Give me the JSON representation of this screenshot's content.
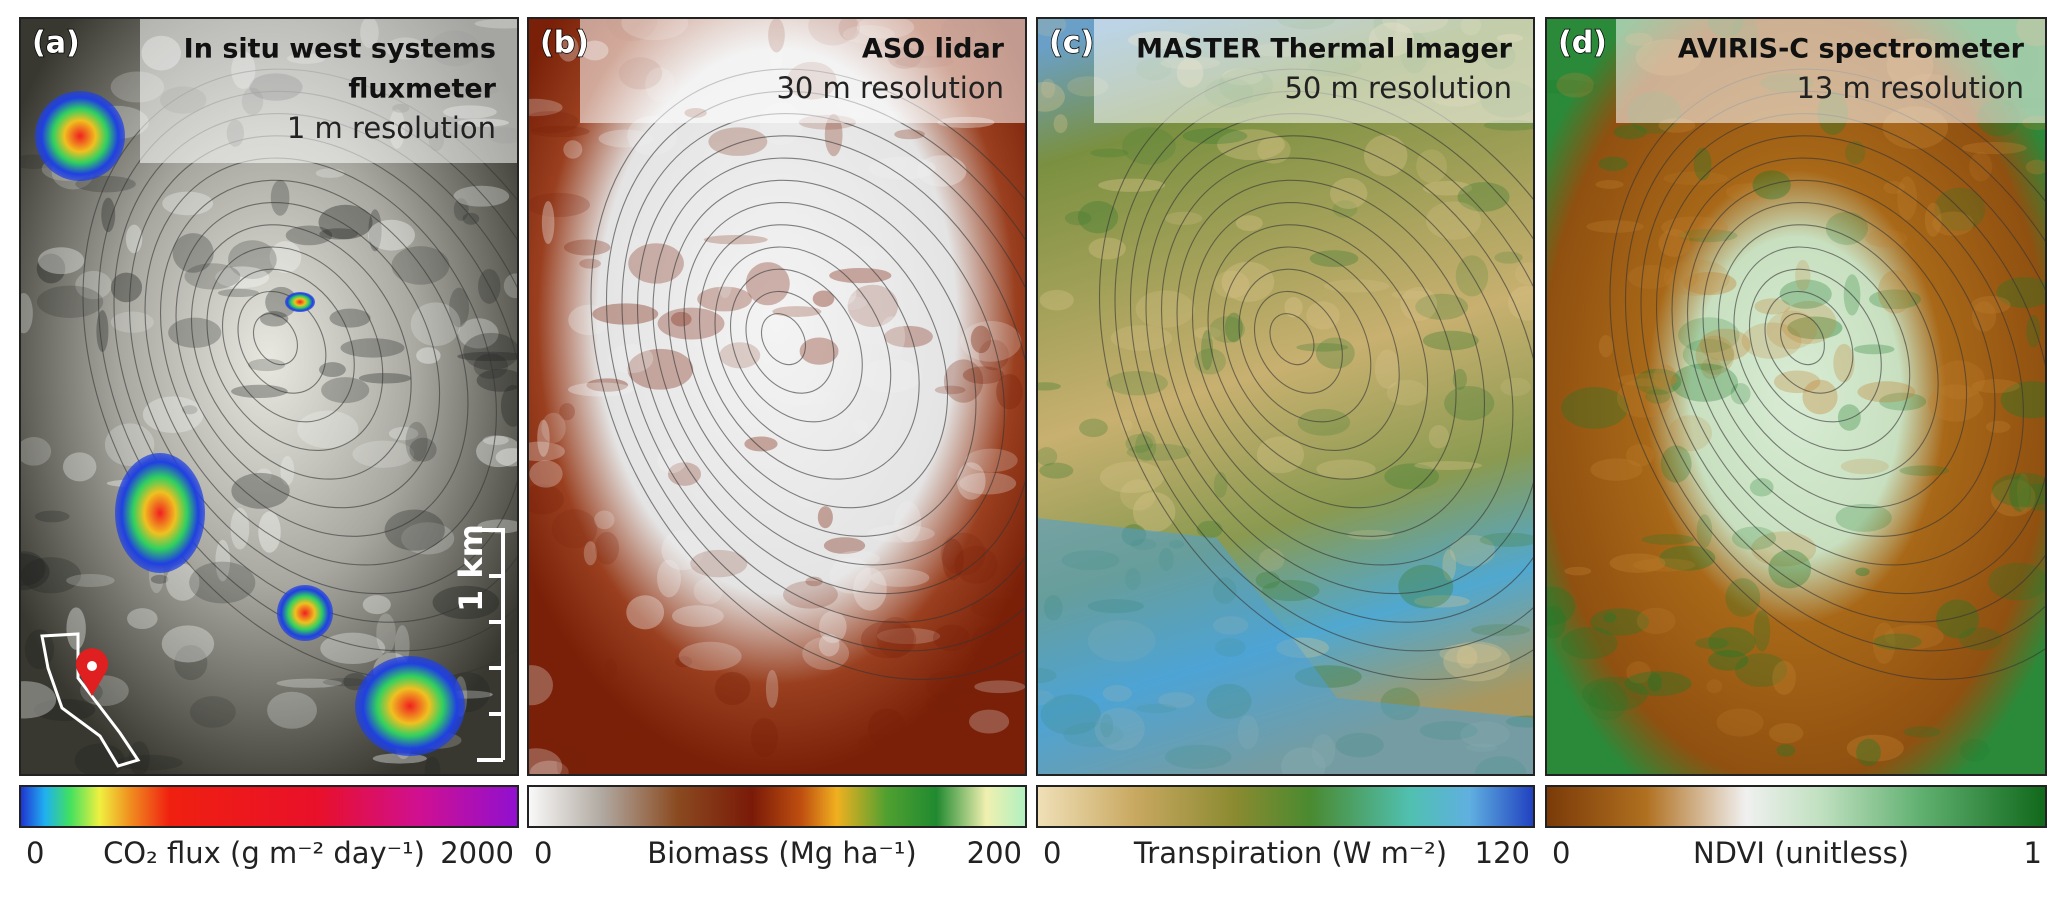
{
  "panels": [
    {
      "label": "(a)",
      "title": [
        "In situ west systems",
        "fluxmeter"
      ],
      "resolution": "1 m resolution",
      "colorbar": {
        "min": 0,
        "label": "CO₂ flux (g m⁻² day⁻¹)",
        "max": 2000
      }
    },
    {
      "label": "(b)",
      "title": [
        "ASO lidar"
      ],
      "resolution": "30 m resolution",
      "colorbar": {
        "min": 0,
        "label": "Biomass (Mg ha⁻¹)",
        "max": 200
      }
    },
    {
      "label": "(c)",
      "title": [
        "MASTER Thermal Imager"
      ],
      "resolution": "50 m resolution",
      "colorbar": {
        "min": 0,
        "label": "Transpiration (W m⁻²)",
        "max": 120
      }
    },
    {
      "label": "(d)",
      "title": [
        "AVIRIS-C spectrometer"
      ],
      "resolution": "13 m resolution",
      "colorbar": {
        "min": 0,
        "label": "NDVI (unitless)",
        "max": 1
      }
    }
  ],
  "scale_bar": "1 km"
}
